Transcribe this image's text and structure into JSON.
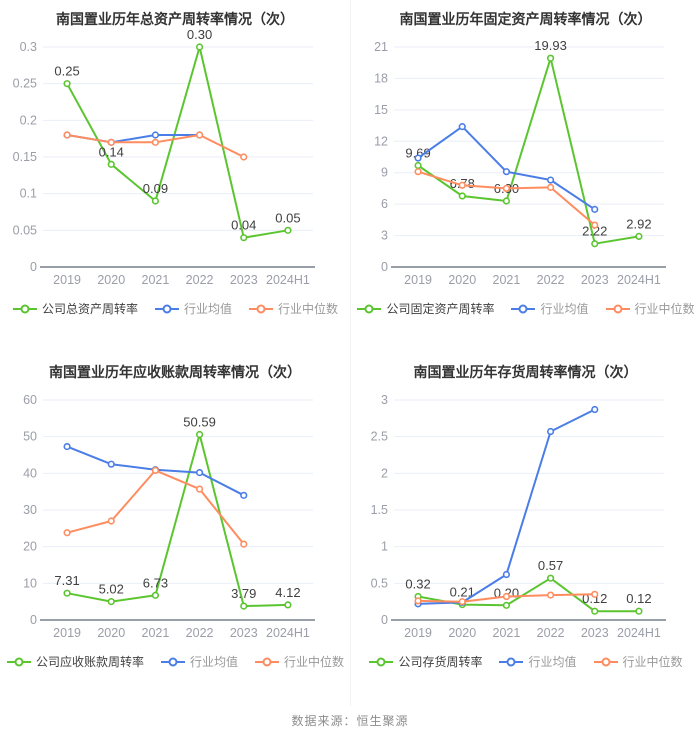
{
  "page": {
    "footer_source": "数据来源：恒生聚源"
  },
  "palette": {
    "company_green": "#5bc530",
    "industry_mean_blue": "#4a7de6",
    "industry_median_orange": "#ff8c5f",
    "grid_line": "#e9eef7",
    "axis_line": "#999fa6",
    "tick_text": "#9b9ea8",
    "label_text": "#404040",
    "title_text": "#333333"
  },
  "chart_data": [
    {
      "id": "total-asset-turnover",
      "type": "line",
      "title": "南国置业历年总资产周转率情况（次）",
      "categories": [
        "2019",
        "2020",
        "2021",
        "2022",
        "2023",
        "2024H1"
      ],
      "y_axis": {
        "min": 0,
        "max": 0.3,
        "ticks": [
          0,
          0.05,
          0.1,
          0.15,
          0.2,
          0.25,
          0.3
        ],
        "tick_labels": [
          "0",
          "0.05",
          "0.1",
          "0.15",
          "0.2",
          "0.25",
          "0.3"
        ]
      },
      "grid": true,
      "legend_position": "bottom",
      "series": [
        {
          "name": "公司总资产周转率",
          "color": "#5bc530",
          "values": [
            0.25,
            0.14,
            0.09,
            0.3,
            0.04,
            0.05
          ],
          "point_labels": [
            "0.25",
            "0.14",
            "0.09",
            "0.30",
            "0.04",
            "0.05"
          ]
        },
        {
          "name": "行业均值",
          "color": "#4a7de6",
          "values": [
            0.18,
            0.17,
            0.18,
            0.18,
            null,
            null
          ]
        },
        {
          "name": "行业中位数",
          "color": "#ff8c5f",
          "values": [
            0.18,
            0.17,
            0.17,
            0.18,
            0.15,
            null
          ]
        }
      ]
    },
    {
      "id": "fixed-asset-turnover",
      "type": "line",
      "title": "南国置业历年固定资产周转率情况（次）",
      "categories": [
        "2019",
        "2020",
        "2021",
        "2022",
        "2023",
        "2024H1"
      ],
      "y_axis": {
        "min": 0,
        "max": 21,
        "ticks": [
          0,
          3,
          6,
          9,
          12,
          15,
          18,
          21
        ],
        "tick_labels": [
          "0",
          "3",
          "6",
          "9",
          "12",
          "15",
          "18",
          "21"
        ]
      },
      "grid": true,
      "legend_position": "bottom",
      "series": [
        {
          "name": "公司固定资产周转率",
          "color": "#5bc530",
          "values": [
            9.69,
            6.78,
            6.3,
            19.93,
            2.22,
            2.92
          ],
          "point_labels": [
            "9.69",
            "6.78",
            "6.30",
            "19.93",
            "2.22",
            "2.92"
          ]
        },
        {
          "name": "行业均值",
          "color": "#4a7de6",
          "values": [
            10.4,
            13.4,
            9.1,
            8.3,
            5.5,
            null
          ]
        },
        {
          "name": "行业中位数",
          "color": "#ff8c5f",
          "values": [
            9.1,
            7.8,
            7.5,
            7.6,
            4.0,
            null
          ]
        }
      ]
    },
    {
      "id": "accounts-receivable-turnover",
      "type": "line",
      "title": "南国置业历年应收账款周转率情况（次）",
      "categories": [
        "2019",
        "2020",
        "2021",
        "2022",
        "2023",
        "2024H1"
      ],
      "y_axis": {
        "min": 0,
        "max": 60,
        "ticks": [
          0,
          10,
          20,
          30,
          40,
          50,
          60
        ],
        "tick_labels": [
          "0",
          "10",
          "20",
          "30",
          "40",
          "50",
          "60"
        ]
      },
      "grid": true,
      "legend_position": "bottom",
      "series": [
        {
          "name": "公司应收账款周转率",
          "color": "#5bc530",
          "values": [
            7.31,
            5.02,
            6.73,
            50.59,
            3.79,
            4.12
          ],
          "point_labels": [
            "7.31",
            "5.02",
            "6.73",
            "50.59",
            "3.79",
            "4.12"
          ]
        },
        {
          "name": "行业均值",
          "color": "#4a7de6",
          "values": [
            47.3,
            42.5,
            41.0,
            40.2,
            34.0,
            null
          ]
        },
        {
          "name": "行业中位数",
          "color": "#ff8c5f",
          "values": [
            23.8,
            27.0,
            40.8,
            35.7,
            20.7,
            null
          ]
        }
      ]
    },
    {
      "id": "inventory-turnover",
      "type": "line",
      "title": "南国置业历年存货周转率情况（次）",
      "categories": [
        "2019",
        "2020",
        "2021",
        "2022",
        "2023",
        "2024H1"
      ],
      "y_axis": {
        "min": 0,
        "max": 3,
        "ticks": [
          0,
          0.5,
          1,
          1.5,
          2,
          2.5,
          3
        ],
        "tick_labels": [
          "0",
          "0.5",
          "1",
          "1.5",
          "2",
          "2.5",
          "3"
        ]
      },
      "grid": true,
      "legend_position": "bottom",
      "series": [
        {
          "name": "公司存货周转率",
          "color": "#5bc530",
          "values": [
            0.32,
            0.21,
            0.2,
            0.57,
            0.12,
            0.12
          ],
          "point_labels": [
            "0.32",
            "0.21",
            "0.20",
            "0.57",
            "0.12",
            "0.12"
          ]
        },
        {
          "name": "行业均值",
          "color": "#4a7de6",
          "values": [
            0.22,
            0.24,
            0.62,
            2.57,
            2.87,
            null
          ]
        },
        {
          "name": "行业中位数",
          "color": "#ff8c5f",
          "values": [
            0.26,
            0.25,
            0.32,
            0.34,
            0.35,
            null
          ]
        }
      ]
    }
  ]
}
